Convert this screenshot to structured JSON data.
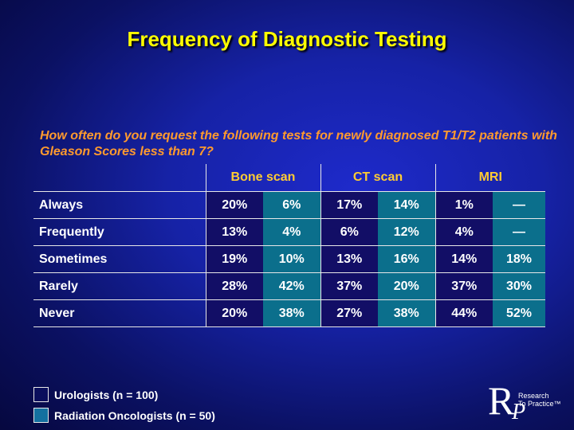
{
  "title": "Frequency of Diagnostic Testing",
  "question": "How often do you request the following tests for newly diagnosed T1/T2 patients with Gleason Scores less than 7?",
  "table": {
    "headers": [
      "Bone scan",
      "CT scan",
      "MRI"
    ],
    "rows": [
      {
        "label": "Always",
        "values": [
          "20%",
          "6%",
          "17%",
          "14%",
          "1%",
          "—"
        ]
      },
      {
        "label": "Frequently",
        "values": [
          "13%",
          "4%",
          "6%",
          "12%",
          "4%",
          "—"
        ]
      },
      {
        "label": "Sometimes",
        "values": [
          "19%",
          "10%",
          "13%",
          "16%",
          "14%",
          "18%"
        ]
      },
      {
        "label": "Rarely",
        "values": [
          "28%",
          "42%",
          "37%",
          "20%",
          "37%",
          "30%"
        ]
      },
      {
        "label": "Never",
        "values": [
          "20%",
          "38%",
          "27%",
          "38%",
          "44%",
          "52%"
        ]
      }
    ]
  },
  "legend": {
    "urologists": "Urologists  (n = 100)",
    "radiation": "Radiation Oncologists  (n = 50)"
  },
  "logo": {
    "letter_r": "R",
    "letter_p": "P",
    "line1": "Research",
    "line2": "To Practice™"
  },
  "colors": {
    "title": "#ffff00",
    "question": "#ff9a2e",
    "header": "#ffcc33",
    "urologists_fill": "#120e66",
    "radiation_fill": "#0b6f8c"
  }
}
